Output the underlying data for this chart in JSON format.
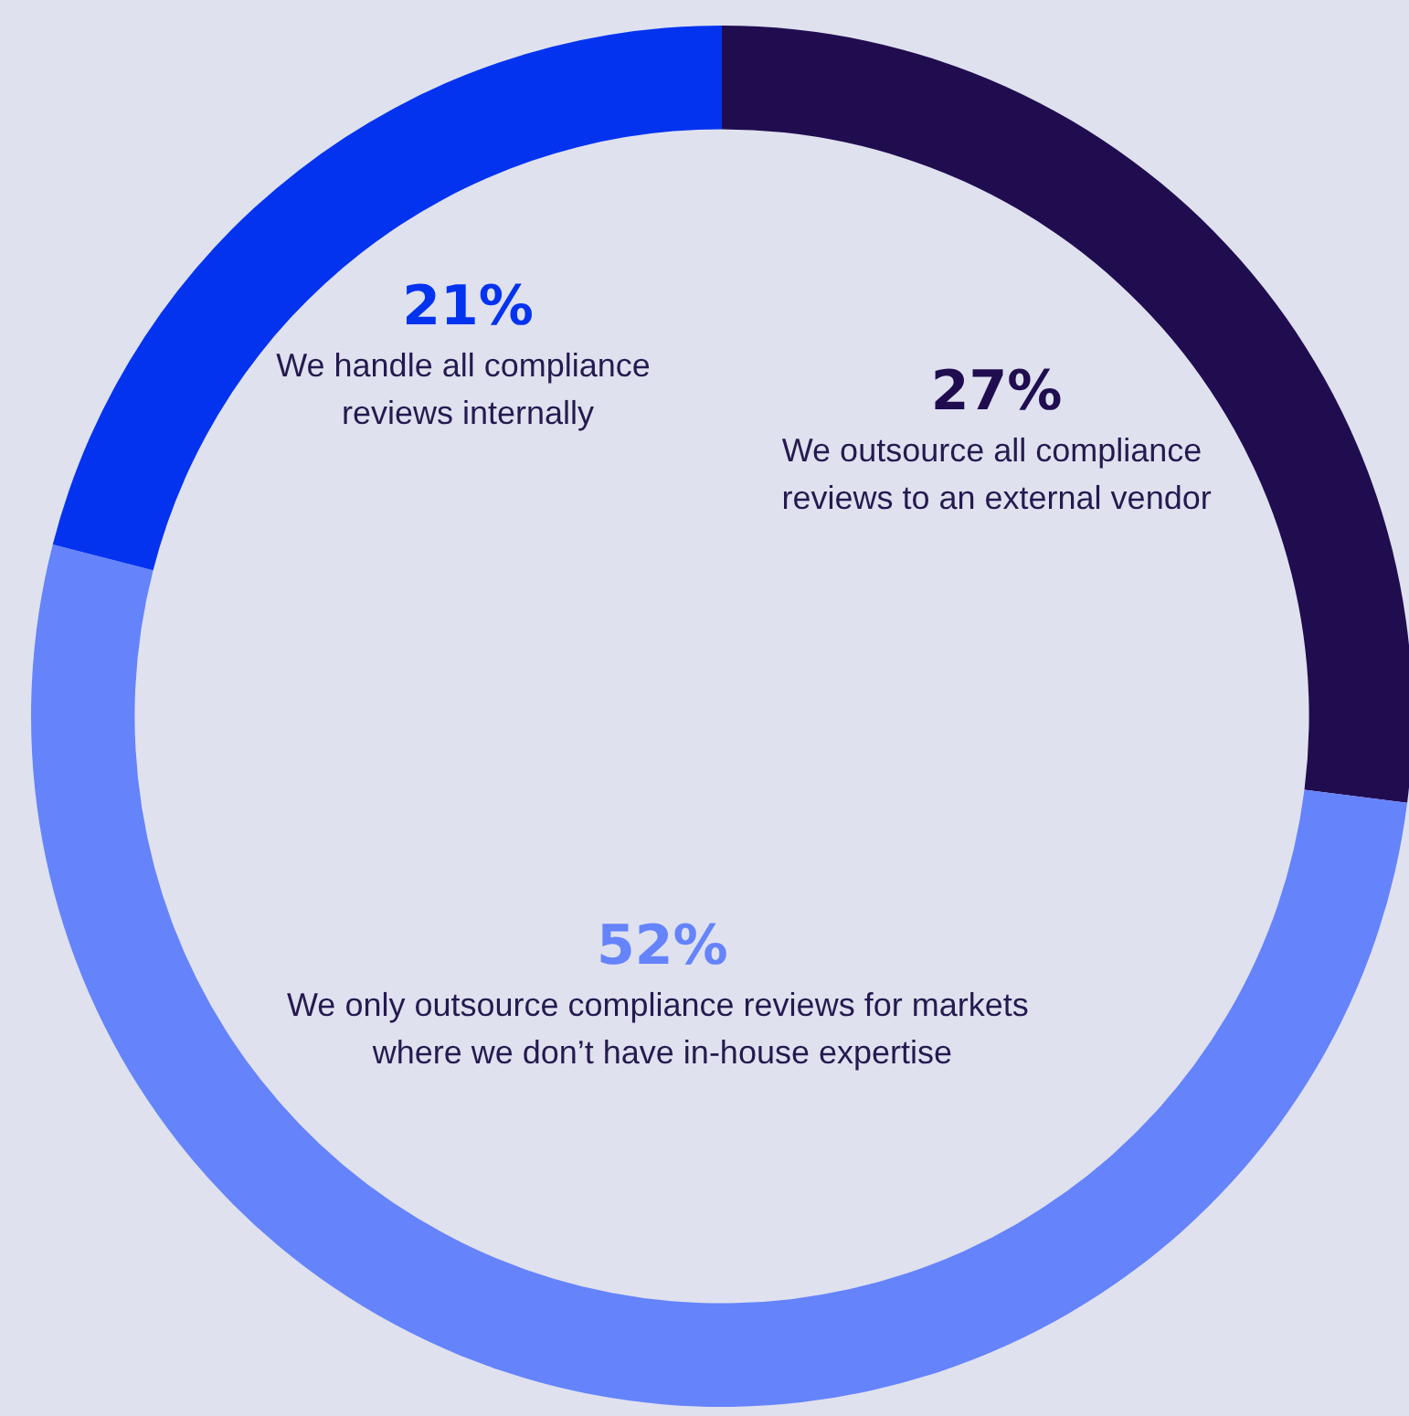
{
  "chart_data": {
    "type": "donut",
    "categories": [
      "We outsource all compliance reviews to an external vendor",
      "We only outsource compliance reviews for markets where we don’t have in-house expertise",
      "We handle all compliance reviews internally"
    ],
    "values": [
      27,
      52,
      21
    ],
    "colors": [
      "#200d50",
      "#6583fb",
      "#0433f0"
    ],
    "value_labels": [
      "27%",
      "52%",
      "21%"
    ]
  }
}
